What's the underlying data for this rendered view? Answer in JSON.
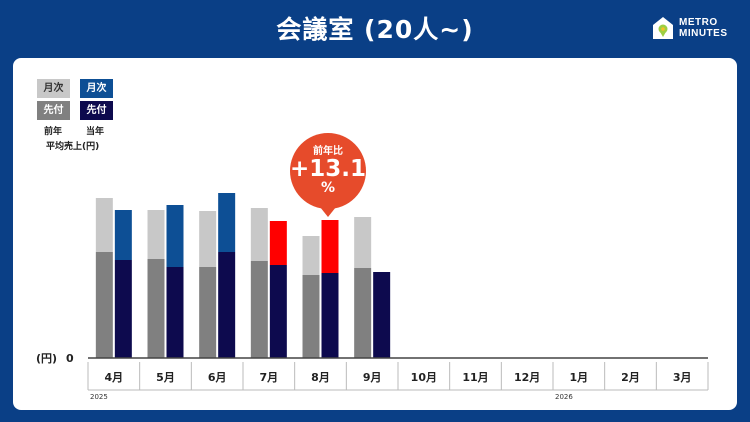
{
  "title": "会議室 (20人~)",
  "brand": {
    "line1": "METRO",
    "line2": "MINUTES",
    "icon": "house-pin-icon"
  },
  "legend": {
    "prev_monthly": "月次",
    "prev_advance": "先付",
    "curr_monthly": "月次",
    "curr_advance": "先付",
    "prev_label": "前年",
    "curr_label": "当年",
    "caption": "平均売上(円)"
  },
  "callout": {
    "label": "前年比",
    "value": "+13.1",
    "unit": "%"
  },
  "chart_data": {
    "type": "bar",
    "stacked": true,
    "ylabel": "(円)",
    "yticks": [
      "0"
    ],
    "ylim": [
      0,
      160
    ],
    "categories": [
      "4月",
      "5月",
      "6月",
      "7月",
      "8月",
      "9月",
      "10月",
      "11月",
      "12月",
      "1月",
      "2月",
      "3月"
    ],
    "year_labels": [
      {
        "index": 0,
        "text": "2025"
      },
      {
        "index": 9,
        "text": "2026"
      }
    ],
    "series": [
      {
        "group": "前年",
        "part": "先付",
        "color": "#808080",
        "values": [
          106,
          99,
          91,
          97,
          83,
          90,
          null,
          null,
          null,
          null,
          null,
          null
        ]
      },
      {
        "group": "前年",
        "part": "月次",
        "color": "#c8c8c8",
        "values": [
          54,
          49,
          56,
          53,
          39,
          51,
          null,
          null,
          null,
          null,
          null,
          null
        ]
      },
      {
        "group": "当年",
        "part": "先付",
        "color": "#0d0a4e",
        "values": [
          98,
          91,
          106,
          93,
          85,
          86,
          null,
          null,
          null,
          null,
          null,
          null
        ]
      },
      {
        "group": "当年",
        "part": "月次",
        "color": "#0d4f95",
        "highlight_color": "#ff0000",
        "highlight_indices": [
          3,
          4
        ],
        "values": [
          50,
          62,
          59,
          44,
          53,
          0,
          null,
          null,
          null,
          null,
          null,
          null
        ]
      }
    ]
  }
}
